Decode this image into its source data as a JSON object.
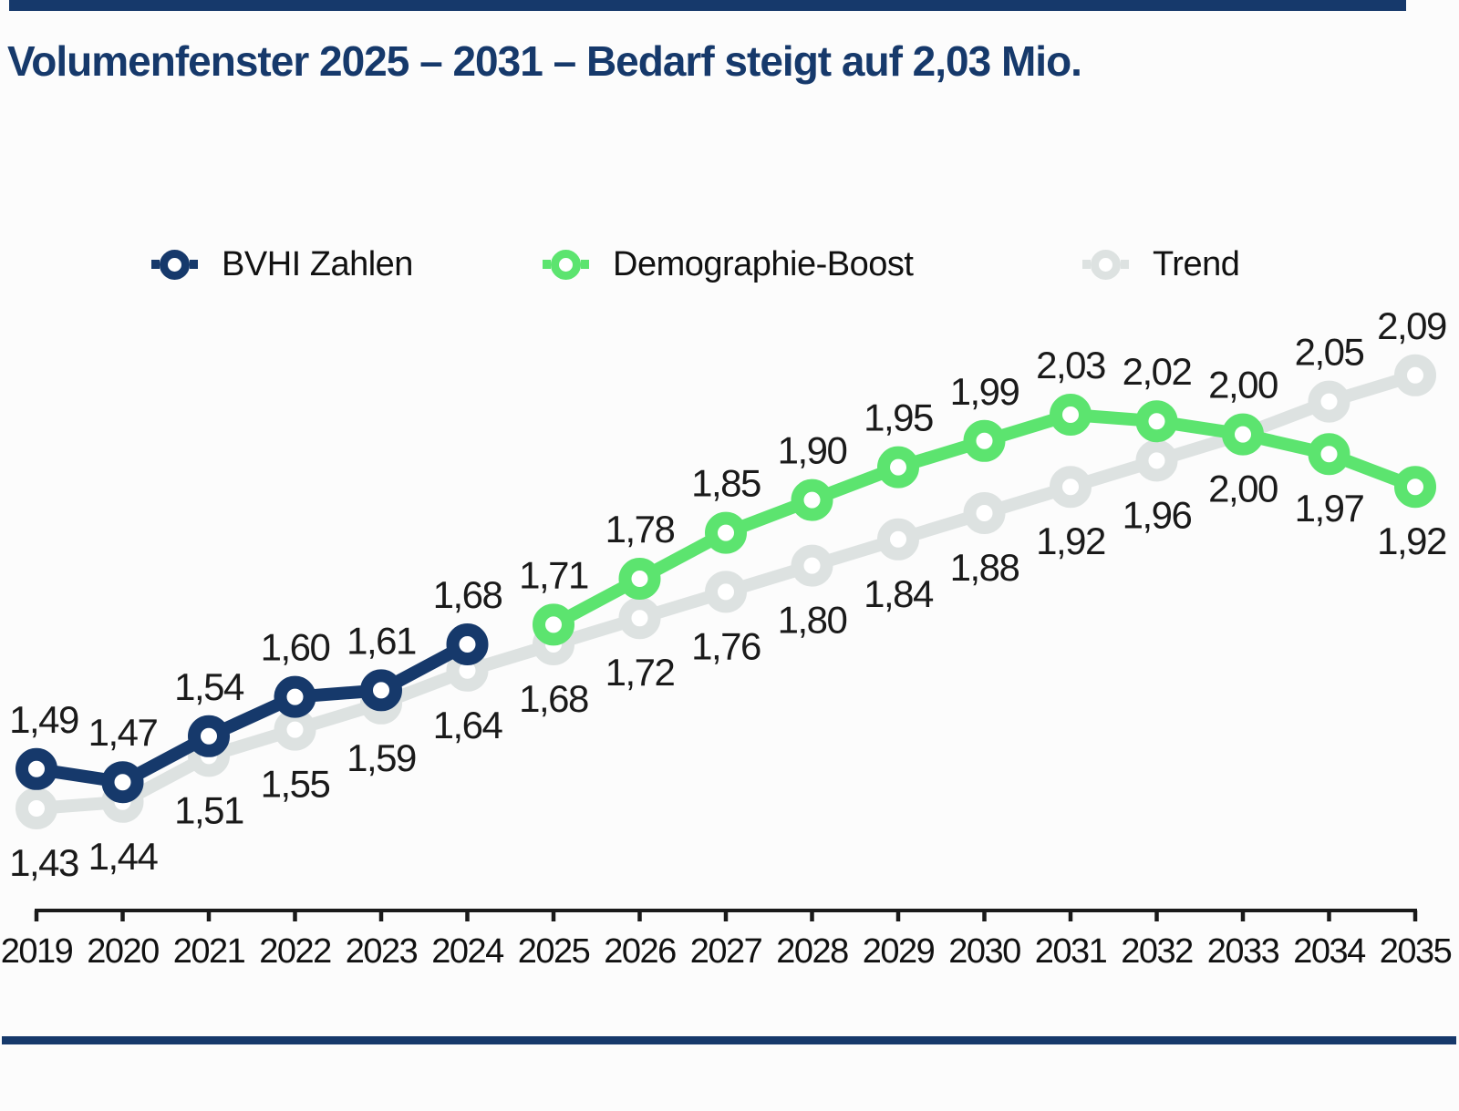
{
  "header": {
    "title": "Volumenfenster 2025 – 2031 – Bedarf steigt auf 2,03 Mio."
  },
  "colors": {
    "navy": "#16396B",
    "green": "#5CE46F",
    "gray": "#DDE2E1",
    "text": "#1A1A1A",
    "axis": "#1A1A1A",
    "background": "#FCFCFC"
  },
  "legend": {
    "items": [
      {
        "label": "BVHI Zahlen",
        "color": "#16396B"
      },
      {
        "label": "Demographie-Boost",
        "color": "#5CE46F"
      },
      {
        "label": "Trend",
        "color": "#DDE2E1"
      }
    ]
  },
  "chart_data": {
    "type": "line",
    "title": "Volumenfenster 2025 – 2031 – Bedarf steigt auf 2,03 Mio.",
    "xlabel": "",
    "ylabel": "",
    "categories": [
      "2019",
      "2020",
      "2021",
      "2022",
      "2023",
      "2024",
      "2025",
      "2026",
      "2027",
      "2028",
      "2029",
      "2030",
      "2031",
      "2032",
      "2033",
      "2034",
      "2035"
    ],
    "x_start": 2019,
    "value_range": [
      1.43,
      2.09
    ],
    "grid": false,
    "legend_position": "top",
    "series": [
      {
        "name": "Trend",
        "color": "#DDE2E1",
        "start_year": 2019,
        "values": [
          1.43,
          1.44,
          1.51,
          1.55,
          1.59,
          1.64,
          1.68,
          1.72,
          1.76,
          1.8,
          1.84,
          1.88,
          1.92,
          1.96,
          2.0,
          2.05,
          2.09
        ],
        "labels": [
          "1,43",
          "1,44",
          "1,51",
          "1,55",
          "1,59",
          "1,64",
          "1,68",
          "1,72",
          "1,76",
          "1,80",
          "1,84",
          "1,88",
          "1,92",
          "1,96",
          "2,00",
          "2,05",
          "2,09"
        ],
        "label_side": [
          "below",
          "below",
          "below",
          "below",
          "below",
          "below",
          "below",
          "below",
          "below",
          "below",
          "below",
          "below",
          "below",
          "below",
          "below",
          "above",
          "above"
        ]
      },
      {
        "name": "BVHI Zahlen",
        "color": "#16396B",
        "start_year": 2019,
        "values": [
          1.49,
          1.47,
          1.54,
          1.6,
          1.61,
          1.68
        ],
        "labels": [
          "1,49",
          "1,47",
          "1,54",
          "1,60",
          "1,61",
          "1,68"
        ],
        "label_side": [
          "above",
          "above",
          "above",
          "above",
          "above",
          "above"
        ]
      },
      {
        "name": "Demographie-Boost",
        "color": "#5CE46F",
        "start_year": 2025,
        "values": [
          1.71,
          1.78,
          1.85,
          1.9,
          1.95,
          1.99,
          2.03,
          2.02,
          2.0,
          1.97,
          1.92
        ],
        "labels": [
          "1,71",
          "1,78",
          "1,85",
          "1,90",
          "1,95",
          "1,99",
          "2,03",
          "2,02",
          "2,00",
          "1,97",
          "1,92"
        ],
        "label_side": [
          "above",
          "above",
          "above",
          "above",
          "above",
          "above",
          "above",
          "above",
          "above",
          "below",
          "below"
        ]
      }
    ]
  }
}
